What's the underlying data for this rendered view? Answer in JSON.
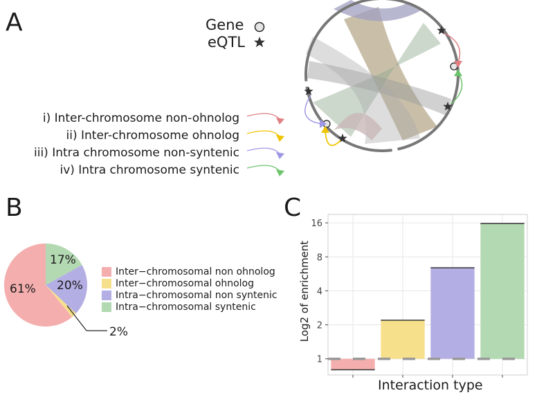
{
  "panels": {
    "a": "A",
    "b": "B",
    "c": "C"
  },
  "legend_a": {
    "gene_label": "Gene",
    "eqtl_label": "eQTL",
    "types": [
      "i) Inter-chromosome non-ohnolog",
      "ii) Inter-chromosome ohnolog",
      "iii) Intra chromosome non-syntenic",
      "iv) Intra chromosome syntenic"
    ]
  },
  "colors": {
    "inter_non_ohnolog": "#f4aeae",
    "inter_ohnolog": "#f7e08c",
    "intra_non_syntenic": "#b3aee3",
    "intra_syntenic": "#b3d9b2",
    "arrow_pink": "#e07f82",
    "arrow_yellow": "#f0c400",
    "arrow_purple": "#9e97e6",
    "arrow_green": "#6cc46c"
  },
  "chart_data": [
    {
      "type": "pie",
      "categories": [
        "Inter−chromosomal non ohnolog",
        "Inter−chromosomal ohnolog",
        "Intra−chromosomal non syntenic",
        "Intra−chromosomal syntenic"
      ],
      "values": [
        61,
        2,
        20,
        17
      ],
      "labels": [
        "61%",
        "2%",
        "20%",
        "17%"
      ],
      "legend": "right"
    },
    {
      "type": "bar",
      "categories": [
        "Inter−chromosomal non ohnolog",
        "Inter−chromosomal ohnolog",
        "Intra−chromosomal non syntenic",
        "Intra−chromosomal syntenic"
      ],
      "values": [
        0.8,
        2.2,
        6.4,
        15.8
      ],
      "xlabel": "Interaction type",
      "ylabel": "Log2 of enrichment",
      "yscale": "log2",
      "yticks": [
        1,
        2,
        4,
        8,
        16
      ],
      "ylim": [
        0.72,
        19
      ],
      "reference_line": 1,
      "grid": true
    }
  ]
}
